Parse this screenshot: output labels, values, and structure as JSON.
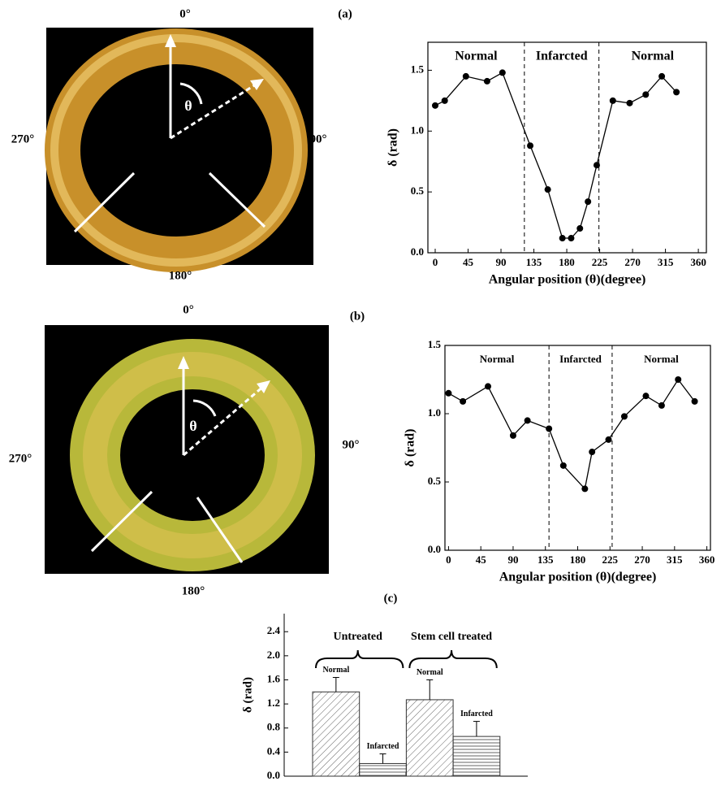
{
  "panel_labels": [
    "(a)",
    "(b)",
    "(c)"
  ],
  "images": [
    {
      "angles": [
        "0°",
        "90°",
        "180°",
        "270°"
      ],
      "theta": "θ"
    },
    {
      "angles": [
        "0°",
        "90°",
        "180°",
        "270°"
      ],
      "theta": "θ"
    }
  ],
  "chart_data": [
    {
      "type": "line",
      "x_label": "Angular position (θ)(degree)",
      "y_label": "δ (rad)",
      "x": [
        0,
        13,
        42,
        71,
        92,
        130,
        154,
        174,
        186,
        198,
        209,
        221,
        243,
        266,
        288,
        310,
        330
      ],
      "values": [
        1.21,
        1.25,
        1.45,
        1.41,
        1.48,
        0.88,
        0.52,
        0.12,
        0.12,
        0.2,
        0.42,
        0.72,
        1.25,
        1.23,
        1.3,
        1.45,
        1.32
      ],
      "color": "#000000",
      "vlines": [
        122,
        224
      ],
      "region_labels": [
        "Normal",
        "Infarcted",
        "Normal"
      ],
      "xlim": [
        -10,
        371
      ],
      "ylim": [
        0,
        1.73
      ],
      "xticks": [
        0,
        45,
        90,
        135,
        180,
        225,
        270,
        315,
        360
      ],
      "yticks": [
        {
          "value": 0,
          "label": "0.0"
        },
        {
          "value": 0.5,
          "label": "0.5"
        },
        {
          "value": 1,
          "label": "1.0"
        },
        {
          "value": 1.5,
          "label": "1.5"
        }
      ]
    },
    {
      "type": "line",
      "x_label": "Angular position (θ)(degree)",
      "y_label": "δ (rad)",
      "x": [
        0,
        20,
        55,
        90,
        110,
        140,
        160,
        190,
        200,
        223,
        245,
        275,
        297,
        320,
        343
      ],
      "values": [
        1.15,
        1.09,
        1.2,
        0.84,
        0.95,
        0.89,
        0.62,
        0.45,
        0.72,
        0.81,
        0.98,
        1.13,
        1.06,
        1.25,
        1.09
      ],
      "color": "#000000",
      "vlines": [
        140,
        228
      ],
      "region_labels": [
        "Normal",
        "Infarcted",
        "Normal"
      ],
      "xlim": [
        -5,
        365
      ],
      "ylim": [
        0,
        1.5
      ],
      "xticks": [
        0,
        45,
        90,
        135,
        180,
        225,
        270,
        315,
        360
      ],
      "yticks": [
        {
          "value": 0,
          "label": "0.0"
        },
        {
          "value": 0.5,
          "label": "0.5"
        },
        {
          "value": 1,
          "label": "1.0"
        },
        {
          "value": 1.5,
          "label": "1.5"
        }
      ]
    },
    {
      "type": "bar",
      "y_label": "δ (rad)",
      "categories": [
        "Untreated",
        "Stem cell treated"
      ],
      "series": [
        {
          "name": "Normal",
          "values": [
            1.4,
            1.27
          ],
          "errors": [
            0.24,
            0.33
          ]
        },
        {
          "name": "Infarcted",
          "values": [
            0.21,
            0.66
          ],
          "errors": [
            0.16,
            0.25
          ]
        }
      ],
      "ylim": [
        0,
        2.7
      ],
      "yticks": [
        {
          "value": 0,
          "label": "0.0"
        },
        {
          "value": 0.4,
          "label": "0.4"
        },
        {
          "value": 0.8,
          "label": "0.8"
        },
        {
          "value": 1.2,
          "label": "1.2"
        },
        {
          "value": 1.6,
          "label": "1.6"
        },
        {
          "value": 2.0,
          "label": "2.0"
        },
        {
          "value": 2.4,
          "label": "2.4"
        }
      ]
    }
  ]
}
